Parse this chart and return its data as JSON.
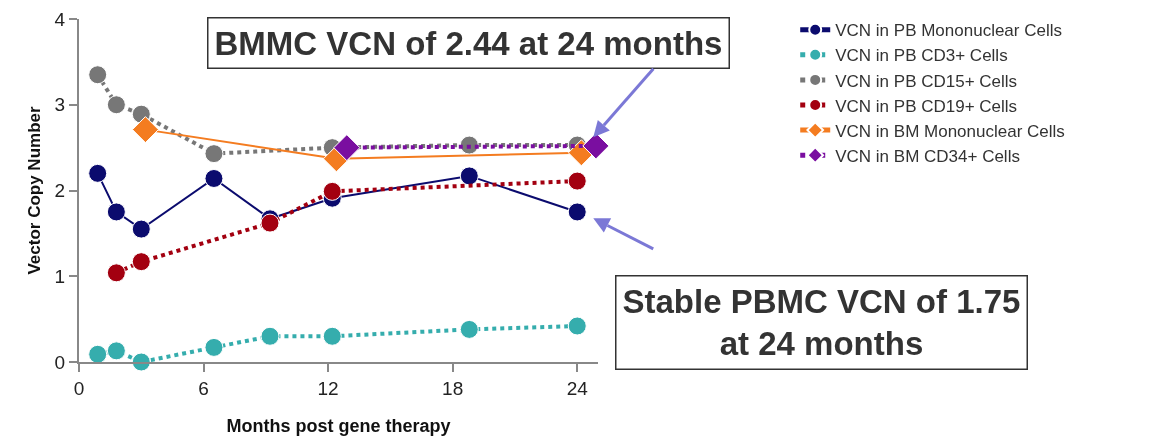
{
  "chart_data": {
    "type": "line",
    "xlabel": "Months post gene therapy",
    "ylabel": "Vector Copy Number",
    "xlim": [
      0,
      25
    ],
    "xticks": [
      0,
      6,
      12,
      18,
      24
    ],
    "ylim": [
      0,
      4
    ],
    "yticks": [
      0,
      1,
      2,
      3,
      4
    ],
    "grid": false,
    "legend": "top right",
    "series": [
      {
        "name": "VCN in PB Mononuclear Cells",
        "color": "#0b0b6e",
        "marker": "circle",
        "line_style": "solid",
        "x": [
          0.9,
          1.8,
          3.0,
          6.5,
          9.2,
          12.2,
          18.8,
          24.0
        ],
        "values": [
          2.2,
          1.75,
          1.55,
          2.14,
          1.67,
          1.91,
          2.17,
          1.75
        ]
      },
      {
        "name": "VCN in PB CD3+ Cells",
        "color": "#35adad",
        "marker": "circle",
        "line_style": "dotted",
        "x": [
          0.9,
          1.8,
          3.0,
          6.5,
          9.2,
          12.2,
          18.8,
          24.0
        ],
        "values": [
          0.09,
          0.13,
          0.0,
          0.17,
          0.3,
          0.3,
          0.38,
          0.42
        ]
      },
      {
        "name": "VCN in PB CD15+ Cells",
        "color": "#777777",
        "marker": "circle",
        "line_style": "dotted",
        "x": [
          0.9,
          1.8,
          3.0,
          6.5,
          12.2,
          18.8,
          24.0
        ],
        "values": [
          3.35,
          3.0,
          2.89,
          2.43,
          2.5,
          2.53,
          2.53
        ]
      },
      {
        "name": "VCN in PB CD19+ Cells",
        "color": "#a30010",
        "marker": "circle",
        "line_style": "dotted",
        "x": [
          1.8,
          3.0,
          9.2,
          12.2,
          24.0
        ],
        "values": [
          1.04,
          1.17,
          1.62,
          1.99,
          2.11
        ]
      },
      {
        "name": "VCN in BM Mononuclear Cells",
        "color": "#f47c20",
        "marker": "diamond",
        "line_style": "solid",
        "x": [
          3.2,
          12.4,
          24.2
        ],
        "values": [
          2.71,
          2.37,
          2.44
        ]
      },
      {
        "name": "VCN in BM CD34+ Cells",
        "color": "#7a0ea0",
        "marker": "diamond",
        "line_style": "dotted",
        "x": [
          12.9,
          24.9
        ],
        "values": [
          2.5,
          2.52
        ]
      }
    ],
    "annotations": [
      {
        "text": "BMMC VCN of 2.44 at 24 months",
        "x": 24.2,
        "y": 2.44
      },
      {
        "text": "Stable PBMC VCN of 1.75\nat 24 months",
        "x": 24.0,
        "y": 1.75
      }
    ]
  }
}
